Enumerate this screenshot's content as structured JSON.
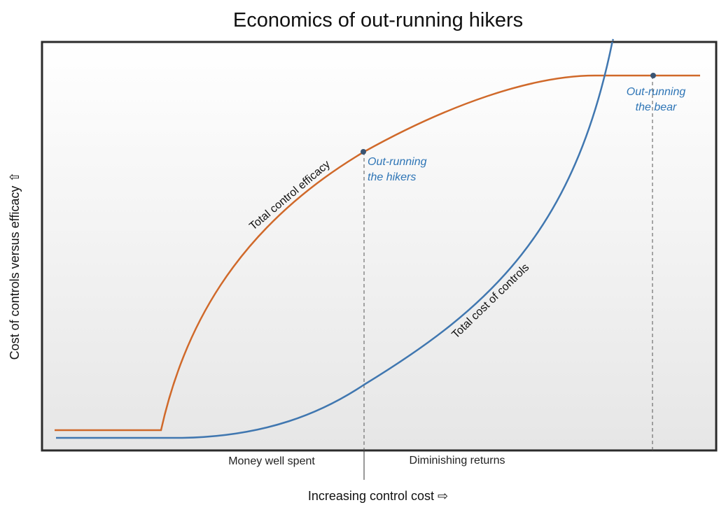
{
  "title": "Economics of out-running hikers",
  "x_axis_label": "Increasing control cost ⇨",
  "y_axis_label": "Cost of controls versus efficacy ⇧",
  "regions": {
    "left": "Money well spent",
    "right": "Diminishing returns"
  },
  "curves": {
    "efficacy": {
      "label": "Total control efficacy",
      "color": "#d0692a"
    },
    "cost": {
      "label": "Total cost of controls",
      "color": "#4077b0"
    }
  },
  "points": {
    "hikers": {
      "line1": "Out-running",
      "line2": "the hikers",
      "color": "#2e75b6"
    },
    "bear": {
      "line1": "Out-running",
      "line2": "the bear",
      "color": "#2e75b6"
    }
  },
  "colors": {
    "frame": "#2b2b2b",
    "guide": "#555555",
    "marker": "#3b5573"
  }
}
